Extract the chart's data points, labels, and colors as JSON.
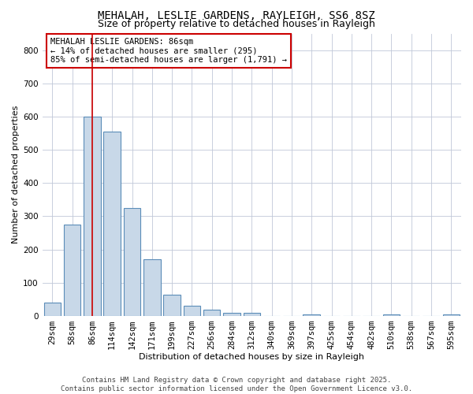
{
  "title": "MEHALAH, LESLIE GARDENS, RAYLEIGH, SS6 8SZ",
  "subtitle": "Size of property relative to detached houses in Rayleigh",
  "xlabel": "Distribution of detached houses by size in Rayleigh",
  "ylabel": "Number of detached properties",
  "footer_line1": "Contains HM Land Registry data © Crown copyright and database right 2025.",
  "footer_line2": "Contains public sector information licensed under the Open Government Licence v3.0.",
  "annotation_line1": "MEHALAH LESLIE GARDENS: 86sqm",
  "annotation_line2": "← 14% of detached houses are smaller (295)",
  "annotation_line3": "85% of semi-detached houses are larger (1,791) →",
  "categories": [
    "29sqm",
    "58sqm",
    "86sqm",
    "114sqm",
    "142sqm",
    "171sqm",
    "199sqm",
    "227sqm",
    "256sqm",
    "284sqm",
    "312sqm",
    "340sqm",
    "369sqm",
    "397sqm",
    "425sqm",
    "454sqm",
    "482sqm",
    "510sqm",
    "538sqm",
    "567sqm",
    "595sqm"
  ],
  "values": [
    40,
    275,
    600,
    555,
    325,
    170,
    65,
    30,
    20,
    10,
    10,
    0,
    0,
    5,
    0,
    0,
    0,
    5,
    0,
    0,
    5
  ],
  "vline_bin": 2,
  "bar_color": "#c8d8e8",
  "bar_edge_color": "#5b8db8",
  "vline_color": "#cc0000",
  "annotation_box_color": "#cc0000",
  "background_color": "#ffffff",
  "grid_color": "#c0c8d8",
  "ylim": [
    0,
    850
  ],
  "yticks": [
    0,
    100,
    200,
    300,
    400,
    500,
    600,
    700,
    800
  ],
  "title_fontsize": 10,
  "subtitle_fontsize": 9,
  "axis_label_fontsize": 8,
  "tick_fontsize": 7.5,
  "annotation_fontsize": 7.5,
  "footer_fontsize": 6.5
}
